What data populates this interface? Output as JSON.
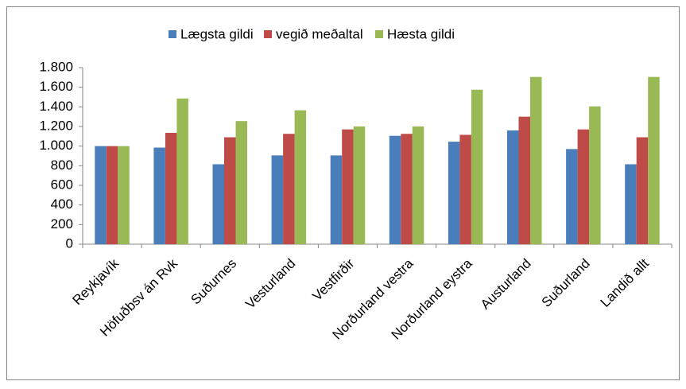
{
  "chart_data": {
    "type": "bar",
    "categories": [
      "Reykjavík",
      "Höfuðbsv án Rvk",
      "Suðurnes",
      "Vesturland",
      "Vestfirðir",
      "Norðurland vestra",
      "Norðurland eystra",
      "Austurland",
      "Suðurland",
      "Landið allt"
    ],
    "series": [
      {
        "name": "Lægsta gildi",
        "color": "#4a7ebb",
        "values": [
          1000,
          985,
          815,
          905,
          905,
          1105,
          1045,
          1160,
          970,
          815
        ]
      },
      {
        "name": "vegið meðaltal",
        "color": "#be4b48",
        "values": [
          1000,
          1135,
          1090,
          1125,
          1170,
          1125,
          1115,
          1300,
          1170,
          1090
        ]
      },
      {
        "name": "Hæsta gildi",
        "color": "#98b954",
        "values": [
          1000,
          1485,
          1255,
          1365,
          1200,
          1200,
          1575,
          1705,
          1405,
          1705
        ]
      }
    ],
    "ylim": [
      0,
      1800
    ],
    "yticks": [
      0,
      200,
      400,
      600,
      800,
      {
        "value": 1000,
        "label": "1.000"
      },
      {
        "value": 1200,
        "label": "1.200"
      },
      {
        "value": 1400,
        "label": "1.400"
      },
      {
        "value": 1600,
        "label": "1.600"
      },
      {
        "value": 1800,
        "label": "1.800"
      }
    ],
    "legend": "top",
    "grid": false
  }
}
